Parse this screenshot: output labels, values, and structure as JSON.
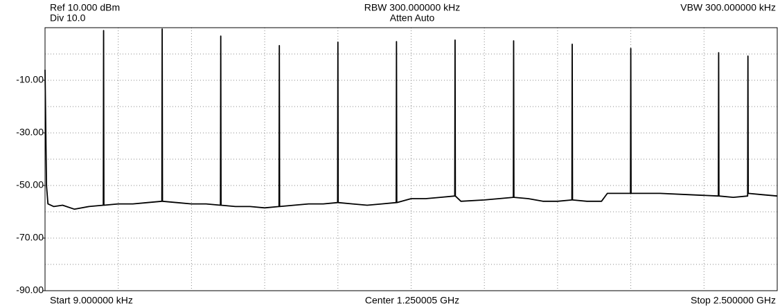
{
  "chart_data": {
    "type": "line",
    "labels": {
      "ref": "Ref 10.000 dBm",
      "div": "Div 10.0",
      "rbw": "RBW 300.000000 kHz",
      "atten": "Atten Auto",
      "vbw": "VBW 300.000000 kHz",
      "start": "Start 9.000000 kHz",
      "center": "Center 1.250005 GHz",
      "stop": "Stop 2.500000 GHz"
    },
    "xlim": [
      0.009,
      2500
    ],
    "ylim": [
      -90,
      10
    ],
    "yticks": [
      {
        "value": -10,
        "label": "-10.00"
      },
      {
        "value": -30,
        "label": "-30.00"
      },
      {
        "value": -50,
        "label": "-50.00"
      },
      {
        "value": -70,
        "label": "-70.00"
      },
      {
        "value": -90,
        "label": "-90.00"
      }
    ],
    "grid": true,
    "ygrid_step": 10,
    "xgrid_divisions": 10,
    "color": "#000000",
    "x": [
      0.009,
      5,
      10,
      30,
      60,
      100,
      150,
      199,
      200,
      201,
      250,
      300,
      350,
      399,
      400,
      401,
      450,
      500,
      550,
      599,
      600,
      601,
      650,
      700,
      750,
      799,
      800,
      801,
      850,
      900,
      950,
      999,
      1000,
      1001,
      1050,
      1100,
      1150,
      1199,
      1200,
      1201,
      1250,
      1300,
      1350,
      1399,
      1400,
      1401,
      1420,
      1500,
      1550,
      1599,
      1600,
      1601,
      1650,
      1700,
      1750,
      1799,
      1800,
      1801,
      1850,
      1900,
      1920,
      1999,
      2000,
      2001,
      2100,
      2200,
      2299,
      2300,
      2301,
      2350,
      2399,
      2400,
      2401,
      2450,
      2500
    ],
    "values": [
      -6,
      -50,
      -57,
      -58,
      -57.5,
      -59,
      -58,
      -57.5,
      8.9,
      -57.5,
      -57,
      -57,
      -56.5,
      -56,
      9.5,
      -56,
      -56.5,
      -57,
      -57,
      -57.5,
      6.8,
      -57.5,
      -58,
      -58,
      -58.5,
      -58,
      3.2,
      -58,
      -57.5,
      -57,
      -57,
      -56.5,
      4.5,
      -56.5,
      -57,
      -57.5,
      -57,
      -56.5,
      4.7,
      -56.5,
      -55,
      -55,
      -54.5,
      -54,
      5.3,
      -54,
      -56,
      -55.5,
      -55,
      -54.5,
      5.0,
      -54.5,
      -55,
      -56,
      -56,
      -55.5,
      3.7,
      -55.5,
      -56,
      -56,
      -53,
      -53,
      2.1,
      -53,
      -53,
      -53.5,
      -54,
      0.5,
      -54,
      -54.5,
      -54,
      -0.8,
      -53,
      -53.5,
      -54
    ]
  }
}
